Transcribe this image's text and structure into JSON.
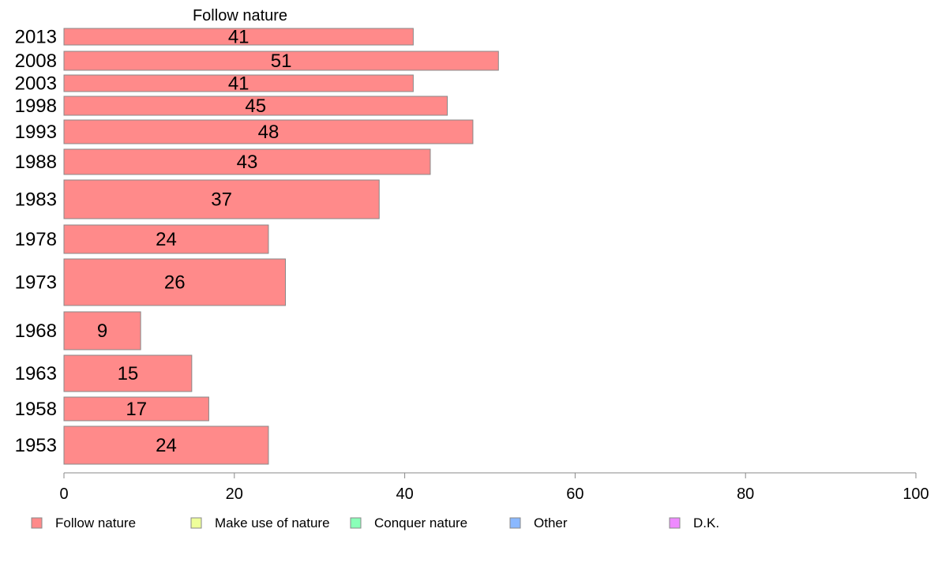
{
  "chart_data": {
    "type": "bar",
    "orientation": "horizontal",
    "panel_title": "Follow nature",
    "categories": [
      "2013",
      "2008",
      "2003",
      "1998",
      "1993",
      "1988",
      "1983",
      "1978",
      "1973",
      "1968",
      "1963",
      "1958",
      "1953"
    ],
    "series": [
      {
        "name": "Follow nature",
        "values": [
          41,
          51,
          41,
          45,
          48,
          43,
          37,
          24,
          26,
          9,
          15,
          17,
          24
        ]
      }
    ],
    "bar_labels": [
      "41",
      "51",
      "41",
      "45",
      "48",
      "43",
      "37",
      "24",
      "26",
      "9",
      "15",
      "17",
      "24"
    ],
    "xlim": [
      0,
      100
    ],
    "x_ticks": [
      0,
      20,
      40,
      60,
      80,
      100
    ],
    "grid": false,
    "legend": {
      "placement": "bottom",
      "entries": [
        {
          "label": "Follow nature",
          "color": "#ff8a8a"
        },
        {
          "label": "Make use of nature",
          "color": "#eeff9a"
        },
        {
          "label": "Conquer nature",
          "color": "#8affb8"
        },
        {
          "label": "Other",
          "color": "#8ab8ff"
        },
        {
          "label": "D.K.",
          "color": "#ee8aff"
        }
      ]
    },
    "colors": {
      "bar": "#ff8a8a",
      "bar_stroke": "#888888",
      "axis": "#888888"
    }
  }
}
